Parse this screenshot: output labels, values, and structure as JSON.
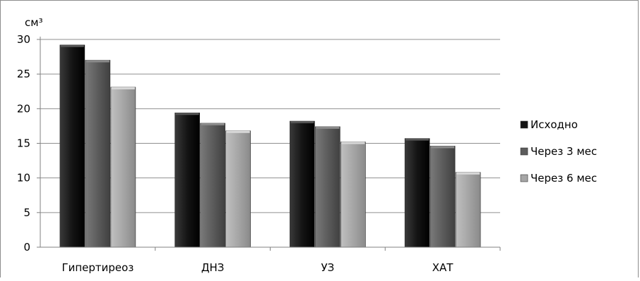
{
  "chart_data": {
    "type": "bar",
    "title": "",
    "ylabel": "см³",
    "xlabel": "",
    "ylim": [
      0,
      30
    ],
    "yticks": [
      0,
      5,
      10,
      15,
      20,
      25,
      30
    ],
    "grid": true,
    "legend_position": "right",
    "categories": [
      "Гипертиреоз",
      "ДНЗ",
      "УЗ",
      "ХАТ"
    ],
    "series": [
      {
        "name": "Исходно",
        "color": "#141414",
        "values": [
          29.2,
          19.4,
          18.2,
          15.7
        ]
      },
      {
        "name": "Через 3 мес",
        "color": "#5c5c5c",
        "values": [
          27.0,
          17.9,
          17.4,
          14.6
        ]
      },
      {
        "name": "Через 6 мес",
        "color": "#a6a6a6",
        "values": [
          23.1,
          16.8,
          15.2,
          10.8
        ]
      }
    ]
  }
}
